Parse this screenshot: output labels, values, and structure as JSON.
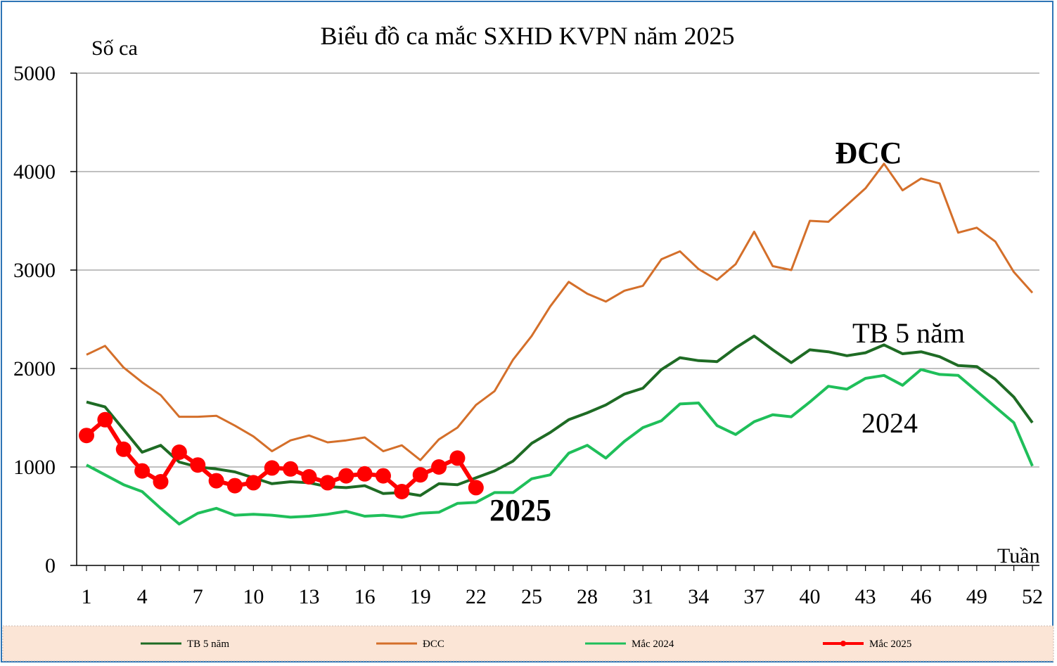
{
  "chart_data": {
    "type": "line",
    "title": "Biểu đồ ca mắc SXHD KVPN năm 2025",
    "ylabel": "Số ca",
    "xlabel": "Tuần",
    "ylim": [
      0,
      5000
    ],
    "yticks": [
      "0",
      "1000",
      "2000",
      "3000",
      "4000",
      "5000"
    ],
    "xlim": [
      1,
      52
    ],
    "xticks": [
      "1",
      "4",
      "7",
      "10",
      "13",
      "16",
      "19",
      "22",
      "25",
      "28",
      "31",
      "34",
      "37",
      "40",
      "43",
      "46",
      "49",
      "52"
    ],
    "grid": true,
    "legend": "bottom",
    "series": [
      {
        "name": "TB 5 năm",
        "color": "#1e6b24",
        "values": [
          1660,
          1610,
          1380,
          1150,
          1220,
          1050,
          1000,
          980,
          950,
          890,
          830,
          850,
          840,
          800,
          790,
          810,
          730,
          740,
          710,
          830,
          820,
          890,
          960,
          1060,
          1240,
          1350,
          1480,
          1550,
          1630,
          1740,
          1800,
          1990,
          2110,
          2080,
          2070,
          2210,
          2330,
          2190,
          2060,
          2190,
          2170,
          2130,
          2160,
          2240,
          2150,
          2170,
          2120,
          2030,
          2020,
          1890,
          1710,
          1450
        ]
      },
      {
        "name": "ĐCC",
        "color": "#d46f2a",
        "values": [
          2140,
          2230,
          2010,
          1860,
          1730,
          1510,
          1510,
          1520,
          1420,
          1310,
          1160,
          1270,
          1320,
          1250,
          1270,
          1300,
          1160,
          1220,
          1070,
          1280,
          1400,
          1630,
          1770,
          2090,
          2330,
          2630,
          2880,
          2760,
          2680,
          2790,
          2840,
          3110,
          3190,
          3010,
          2900,
          3060,
          3390,
          3040,
          3000,
          3500,
          3490,
          3660,
          3830,
          4080,
          3810,
          3930,
          3880,
          3380,
          3430,
          3290,
          2980,
          2770
        ]
      },
      {
        "name": "Mắc 2024",
        "color": "#1fbf5a",
        "values": [
          1020,
          920,
          820,
          750,
          580,
          420,
          530,
          580,
          510,
          520,
          510,
          490,
          500,
          520,
          550,
          500,
          510,
          490,
          530,
          540,
          630,
          640,
          740,
          740,
          880,
          920,
          1140,
          1220,
          1090,
          1260,
          1400,
          1470,
          1640,
          1650,
          1420,
          1330,
          1460,
          1530,
          1510,
          1660,
          1820,
          1790,
          1900,
          1930,
          1830,
          1990,
          1940,
          1930,
          1770,
          1610,
          1450,
          1010
        ]
      },
      {
        "name": "Mắc 2025",
        "color": "#ff0000",
        "values": [
          1320,
          1480,
          1180,
          960,
          850,
          1150,
          1020,
          860,
          810,
          840,
          990,
          980,
          900,
          840,
          910,
          930,
          910,
          750,
          920,
          1000,
          1090,
          790
        ]
      }
    ],
    "annotations": [
      {
        "text": "ĐCC",
        "color": "#92d050"
      },
      {
        "text": "TB 5 năm",
        "color": "#1e6b24"
      },
      {
        "text": "2024",
        "color": "#1fbf5a"
      },
      {
        "text": "2025",
        "color": "#ff0000"
      }
    ]
  },
  "colors": {
    "legend_band": "#fbe5d6",
    "frame_border": "#2e75b6",
    "grid": "#808080"
  }
}
